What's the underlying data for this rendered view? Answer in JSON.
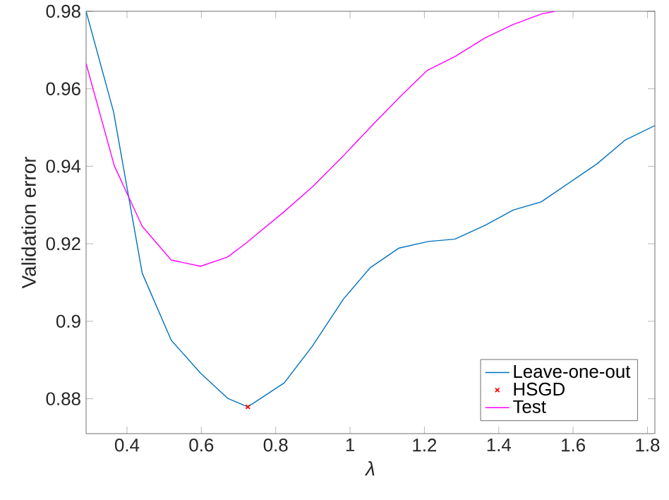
{
  "chart_data": {
    "type": "line",
    "xlabel": "λ",
    "ylabel": "Validation error",
    "xlim": [
      0.29,
      1.82
    ],
    "ylim": [
      0.871,
      0.98
    ],
    "xticks": [
      0.4,
      0.6,
      0.8,
      1,
      1.2,
      1.4,
      1.6,
      1.8
    ],
    "yticks": [
      0.88,
      0.9,
      0.92,
      0.94,
      0.96,
      0.98
    ],
    "grid": false,
    "legend": "bottom right",
    "series": [
      {
        "name": "Leave-one-out",
        "color": "#0072bd",
        "x": [
          0.29,
          0.364,
          0.441,
          0.519,
          0.598,
          0.671,
          0.725,
          0.823,
          0.898,
          0.982,
          1.054,
          1.132,
          1.211,
          1.282,
          1.364,
          1.439,
          1.514,
          1.589,
          1.664,
          1.739,
          1.82
        ],
        "values": [
          0.98,
          0.954,
          0.9124,
          0.8951,
          0.8866,
          0.8801,
          0.8779,
          0.8841,
          0.8935,
          0.9057,
          0.9138,
          0.9189,
          0.9206,
          0.9212,
          0.9248,
          0.9287,
          0.9308,
          0.9357,
          0.9406,
          0.9467,
          0.9505
        ]
      },
      {
        "name": "HSGD",
        "type": "scatter",
        "marker": "cross",
        "color": "#ff0000",
        "x": [
          0.725
        ],
        "values": [
          0.8779
        ]
      },
      {
        "name": "Test",
        "color": "#ff00ff",
        "x": [
          0.29,
          0.366,
          0.441,
          0.519,
          0.598,
          0.671,
          0.722,
          0.823,
          0.898,
          0.982,
          1.054,
          1.135,
          1.207,
          1.282,
          1.364,
          1.439,
          1.514,
          1.551
        ],
        "values": [
          0.9665,
          0.9401,
          0.9245,
          0.9158,
          0.9142,
          0.9166,
          0.9203,
          0.9283,
          0.9346,
          0.9427,
          0.95,
          0.958,
          0.9647,
          0.9683,
          0.9732,
          0.9766,
          0.9793,
          0.98
        ]
      }
    ]
  }
}
